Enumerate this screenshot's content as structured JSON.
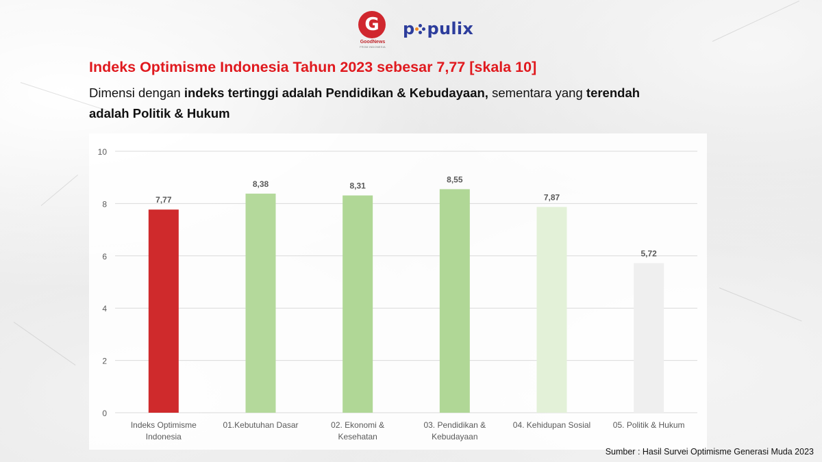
{
  "logos": {
    "goodnews_name": "GoodNews",
    "goodnews_sub": "FROM INDONESIA",
    "goodnews_glyph": "G",
    "populix_prefix": "p",
    "populix_suffix": "pulix"
  },
  "title": "Indeks Optimisme Indonesia Tahun 2023 sebesar 7,77 [skala 10]",
  "subtitle": {
    "part1": "Dimensi dengan ",
    "part2_bold": "indeks tertinggi adalah Pendidikan & Kebudayaan,",
    "part3": " sementara yang ",
    "part4_bold": "terendah adalah Politik & Hukum"
  },
  "chart_data": {
    "type": "bar",
    "title": "",
    "xlabel": "",
    "ylabel": "",
    "ylim": [
      0,
      10
    ],
    "yticks": [
      "0",
      "2",
      "4",
      "6",
      "8",
      "10"
    ],
    "grid": true,
    "categories": [
      [
        "Indeks Optimisme",
        "Indonesia"
      ],
      [
        "01.Kebutuhan Dasar"
      ],
      [
        "02. Ekonomi &",
        "Kesehatan"
      ],
      [
        "03. Pendidikan &",
        "Kebudayaan"
      ],
      [
        "04. Kehidupan Sosial"
      ],
      [
        "05. Politik & Hukum"
      ]
    ],
    "values": [
      7.77,
      8.38,
      8.31,
      8.55,
      7.87,
      5.72
    ],
    "value_labels": [
      "7,77",
      "8,38",
      "8,31",
      "8,55",
      "7,87",
      "5,72"
    ],
    "colors": [
      "#cf2a2c",
      "#b4d99b",
      "#b0d796",
      "#b0d796",
      "#e3f1d8",
      "#efefef"
    ]
  },
  "source": "Sumber : Hasil Survei Optimisme Generasi Muda 2023"
}
